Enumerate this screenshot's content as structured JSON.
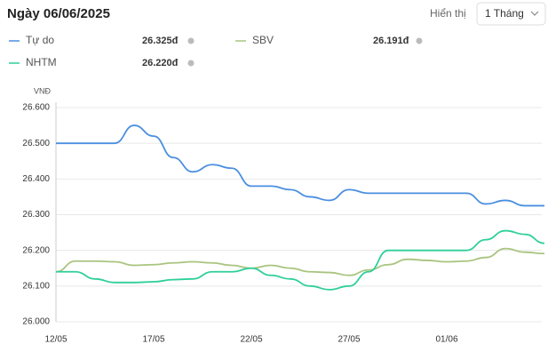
{
  "chart_data": {
    "type": "line",
    "title": "Ngày 06/06/2025",
    "view_label": "Hiển thị",
    "view_option": "1 Tháng",
    "y_label": "VNĐ",
    "categories": [
      "12/05",
      null,
      null,
      null,
      null,
      "17/05",
      null,
      null,
      null,
      null,
      "22/05",
      null,
      null,
      null,
      null,
      "27/05",
      null,
      null,
      null,
      null,
      "01/06",
      null,
      null,
      null,
      null,
      null
    ],
    "series": [
      {
        "name": "Tự do",
        "color": "#4a8fe0",
        "latest_label": "26.325đ",
        "values": [
          26500,
          26500,
          26500,
          26500,
          26550,
          26520,
          26460,
          26420,
          26440,
          26430,
          26380,
          26380,
          26370,
          26350,
          26340,
          26370,
          26360,
          26360,
          26360,
          26360,
          26360,
          26360,
          26330,
          26340,
          26325,
          26325
        ]
      },
      {
        "name": "SBV",
        "color": "#a9c47f",
        "latest_label": "26.191đ",
        "values": [
          26140,
          26170,
          26170,
          26168,
          26158,
          26160,
          26165,
          26168,
          26165,
          26158,
          26150,
          26158,
          26150,
          26140,
          26138,
          26130,
          26145,
          26160,
          26175,
          26172,
          26168,
          26170,
          26180,
          26205,
          26195,
          26191
        ]
      },
      {
        "name": "NHTM",
        "color": "#2fcf9a",
        "latest_label": "26.220đ",
        "values": [
          26140,
          26140,
          26120,
          26110,
          26110,
          26112,
          26118,
          26120,
          26140,
          26140,
          26150,
          26130,
          26120,
          26100,
          26090,
          26100,
          26140,
          26200,
          26200,
          26200,
          26200,
          26200,
          26230,
          26255,
          26245,
          26220
        ]
      }
    ],
    "ylim": [
      26000,
      26600
    ],
    "yticks": [
      {
        "value": 26000,
        "label": "26.000"
      },
      {
        "value": 26100,
        "label": "26.100"
      },
      {
        "value": 26200,
        "label": "26.200"
      },
      {
        "value": 26300,
        "label": "26.300"
      },
      {
        "value": 26400,
        "label": "26.400"
      },
      {
        "value": 26500,
        "label": "26.500"
      },
      {
        "value": 26600,
        "label": "26.600"
      }
    ],
    "grid": true
  }
}
